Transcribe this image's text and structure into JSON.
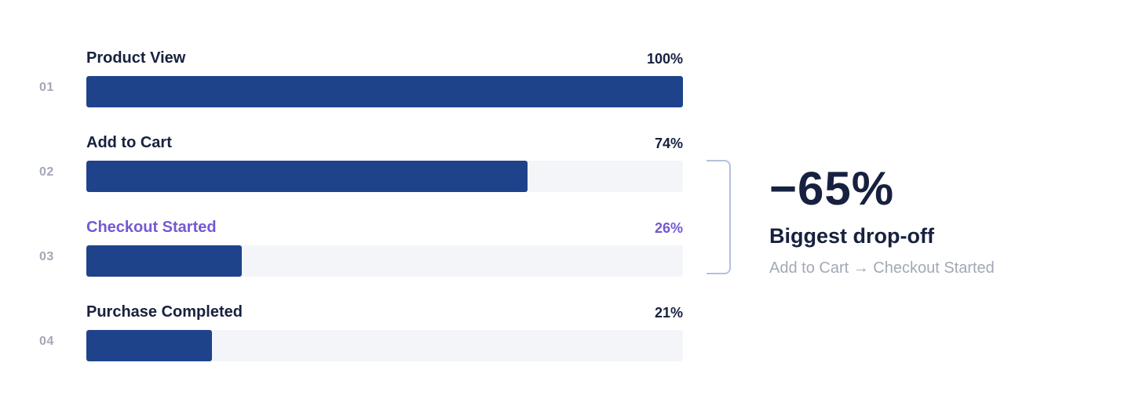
{
  "chart_data": {
    "type": "bar",
    "orientation": "horizontal",
    "title": "",
    "categories": [
      "Product View",
      "Add to Cart",
      "Checkout Started",
      "Purchase Completed"
    ],
    "step_numbers": [
      "01",
      "02",
      "03",
      "04"
    ],
    "values": [
      100,
      74,
      26,
      21
    ],
    "value_labels": [
      "100%",
      "74%",
      "26%",
      "21%"
    ],
    "xlim": [
      0,
      100
    ],
    "highlighted_category": "Checkout Started",
    "colors": {
      "bar": "#1f438b",
      "track": "#f3f5f9",
      "highlight_text": "#7459d2",
      "label_text": "#17213f",
      "muted_text": "#a2a8b6",
      "bracket": "#b3c1db"
    },
    "annotation": {
      "value": "−65%",
      "title": "Biggest drop-off",
      "detail": "Add to Cart → Checkout Started",
      "spans_categories": [
        "Add to Cart",
        "Checkout Started"
      ]
    }
  }
}
